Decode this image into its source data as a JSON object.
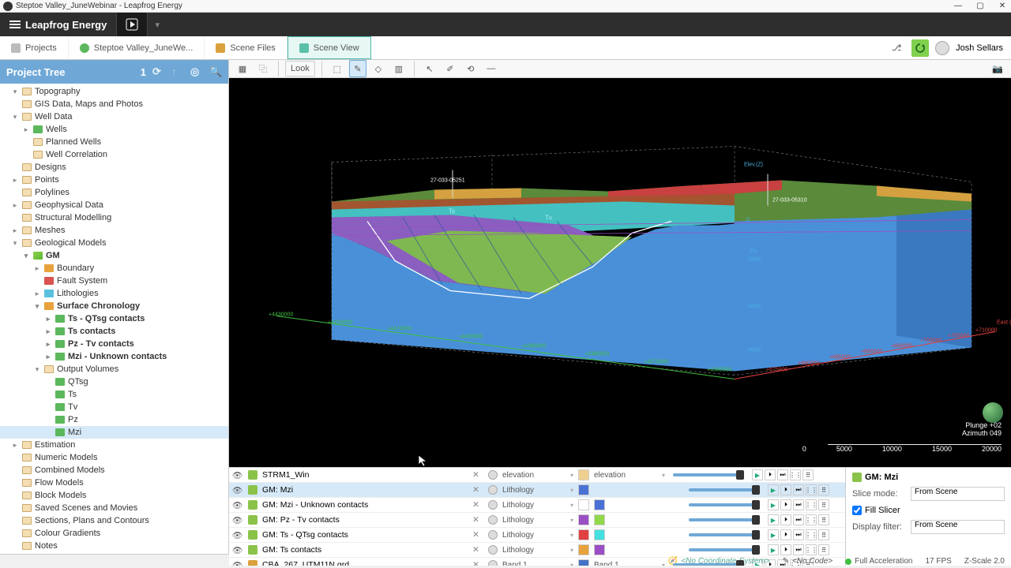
{
  "window": {
    "title": "Steptoe Valley_JuneWebinar - Leapfrog Energy",
    "app_name": "Leapfrog Energy"
  },
  "tabs": [
    {
      "label": "Projects",
      "icon_color": "#888"
    },
    {
      "label": "Steptoe Valley_JuneWe...",
      "icon_color": "#5cb85c"
    },
    {
      "label": "Scene Files",
      "icon_color": "#d9a23d"
    },
    {
      "label": "Scene View",
      "icon_color": "#5bc0a8",
      "active": true
    }
  ],
  "user": {
    "name": "Josh Sellars"
  },
  "sidebar": {
    "title": "Project Tree",
    "badge": "1"
  },
  "tree": [
    {
      "indent": 1,
      "expand": "▾",
      "label": "Topography"
    },
    {
      "indent": 1,
      "expand": "",
      "label": "GIS Data, Maps and Photos"
    },
    {
      "indent": 1,
      "expand": "▾",
      "label": "Well Data"
    },
    {
      "indent": 2,
      "expand": "▸",
      "label": "Wells",
      "icon": "green"
    },
    {
      "indent": 2,
      "expand": "",
      "label": "Planned Wells"
    },
    {
      "indent": 2,
      "expand": "",
      "label": "Well Correlation"
    },
    {
      "indent": 1,
      "expand": "",
      "label": "Designs"
    },
    {
      "indent": 1,
      "expand": "▸",
      "label": "Points"
    },
    {
      "indent": 1,
      "expand": "",
      "label": "Polylines"
    },
    {
      "indent": 1,
      "expand": "▸",
      "label": "Geophysical Data"
    },
    {
      "indent": 1,
      "expand": "",
      "label": "Structural Modelling"
    },
    {
      "indent": 1,
      "expand": "▸",
      "label": "Meshes"
    },
    {
      "indent": 1,
      "expand": "▾",
      "label": "Geological Models"
    },
    {
      "indent": 2,
      "expand": "▾",
      "label": "GM",
      "icon": "cube",
      "bold": true
    },
    {
      "indent": 3,
      "expand": "▸",
      "label": "Boundary",
      "icon": "orange"
    },
    {
      "indent": 3,
      "expand": "",
      "label": "Fault System",
      "icon": "red"
    },
    {
      "indent": 3,
      "expand": "▸",
      "label": "Lithologies",
      "icon": "teal"
    },
    {
      "indent": 3,
      "expand": "▾",
      "label": "Surface Chronology",
      "icon": "orange",
      "bold": true
    },
    {
      "indent": 4,
      "expand": "▸",
      "label": "Ts - QTsg contacts",
      "icon": "green",
      "bold": true
    },
    {
      "indent": 4,
      "expand": "▸",
      "label": "Ts contacts",
      "icon": "green",
      "bold": true
    },
    {
      "indent": 4,
      "expand": "▸",
      "label": "Pz - Tv contacts",
      "icon": "green",
      "bold": true
    },
    {
      "indent": 4,
      "expand": "▸",
      "label": "Mzi - Unknown contacts",
      "icon": "green",
      "bold": true
    },
    {
      "indent": 3,
      "expand": "▾",
      "label": "Output Volumes"
    },
    {
      "indent": 4,
      "expand": "",
      "label": "QTsg",
      "icon": "green"
    },
    {
      "indent": 4,
      "expand": "",
      "label": "Ts",
      "icon": "green"
    },
    {
      "indent": 4,
      "expand": "",
      "label": "Tv",
      "icon": "green"
    },
    {
      "indent": 4,
      "expand": "",
      "label": "Pz",
      "icon": "green"
    },
    {
      "indent": 4,
      "expand": "",
      "label": "Mzi",
      "icon": "green",
      "selected": true
    },
    {
      "indent": 1,
      "expand": "▸",
      "label": "Estimation"
    },
    {
      "indent": 1,
      "expand": "",
      "label": "Numeric Models"
    },
    {
      "indent": 1,
      "expand": "",
      "label": "Combined Models"
    },
    {
      "indent": 1,
      "expand": "",
      "label": "Flow Models"
    },
    {
      "indent": 1,
      "expand": "",
      "label": "Block Models"
    },
    {
      "indent": 1,
      "expand": "",
      "label": "Saved Scenes and Movies"
    },
    {
      "indent": 1,
      "expand": "",
      "label": "Sections, Plans and Contours"
    },
    {
      "indent": 1,
      "expand": "",
      "label": "Colour Gradients"
    },
    {
      "indent": 1,
      "expand": "",
      "label": "Notes"
    }
  ],
  "toolbar": {
    "look_label": "Look"
  },
  "viewport": {
    "plunge": "Plunge +02",
    "azimuth": "Azimuth 049",
    "scale": [
      "0",
      "5000",
      "10000",
      "15000",
      "20000"
    ],
    "axis_z": "Elev.(Z)",
    "axis_e": "East (X)",
    "well1": "27-033-05251",
    "well2": "27-033-05310",
    "z_labels": [
      "0",
      "-2000",
      "-4000",
      "-6000"
    ],
    "x_labels": [
      "+4430000",
      "+4420000",
      "+4410000",
      "+4400000",
      "+4390000",
      "+4380000",
      "+4370000",
      "+4360000"
    ],
    "e_labels": [
      "+675000",
      "+680000",
      "+685000",
      "+690000",
      "+695000",
      "+700000",
      "+705000",
      "+710000"
    ],
    "pz_label": "Pz",
    "ts_label": "Ts",
    "tv_label": "Tv",
    "colors": {
      "block_face": "#4a90d9",
      "terrain_top": "#8a5a2a",
      "green": "#7fb850",
      "purple": "#8a5fbf",
      "teal": "#44c0c0",
      "grid": "#444444",
      "axis_red": "#e04040",
      "axis_green": "#40c040"
    }
  },
  "scene_list": [
    {
      "name": "STRM1_Win",
      "attr": "elevation",
      "attr2": "elevation",
      "c1": "#f0d090",
      "c2": "",
      "selected": false,
      "icon": "#8bc34a"
    },
    {
      "name": "GM: Mzi",
      "attr": "Lithology",
      "c1": "#4a72d4",
      "c2": "",
      "selected": true,
      "icon": "#8bc34a"
    },
    {
      "name": "GM: Mzi - Unknown contacts",
      "attr": "Lithology",
      "c1": "#ffffff",
      "c2": "#4a72d4",
      "selected": false,
      "icon": "#8bc34a"
    },
    {
      "name": "GM: Pz - Tv contacts",
      "attr": "Lithology",
      "c1": "#9a4fc4",
      "c2": "#93d94c",
      "selected": false,
      "icon": "#8bc34a"
    },
    {
      "name": "GM: Ts - QTsg contacts",
      "attr": "Lithology",
      "c1": "#e04040",
      "c2": "#44e0e0",
      "selected": false,
      "icon": "#8bc34a"
    },
    {
      "name": "GM: Ts contacts",
      "attr": "Lithology",
      "c1": "#e8a23d",
      "c2": "#9a4fc4",
      "selected": false,
      "icon": "#8bc34a"
    },
    {
      "name": "CBA_267_UTM11N.grd",
      "attr": "Band 1",
      "attr2": "Band 1",
      "c1": "#4472c4",
      "c2": "",
      "selected": false,
      "icon": "#d9a23d"
    }
  ],
  "props": {
    "title": "GM: Mzi",
    "slice_mode_label": "Slice mode:",
    "slice_mode_value": "From Scene",
    "fill_slicer_label": "Fill Slicer",
    "display_filter_label": "Display filter:",
    "display_filter_value": "From Scene"
  },
  "status": {
    "coord": "<No Coordinate System>",
    "code": "<No Code>",
    "accel": "Full Acceleration",
    "fps": "17 FPS",
    "zscale": "Z-Scale 2.0"
  }
}
